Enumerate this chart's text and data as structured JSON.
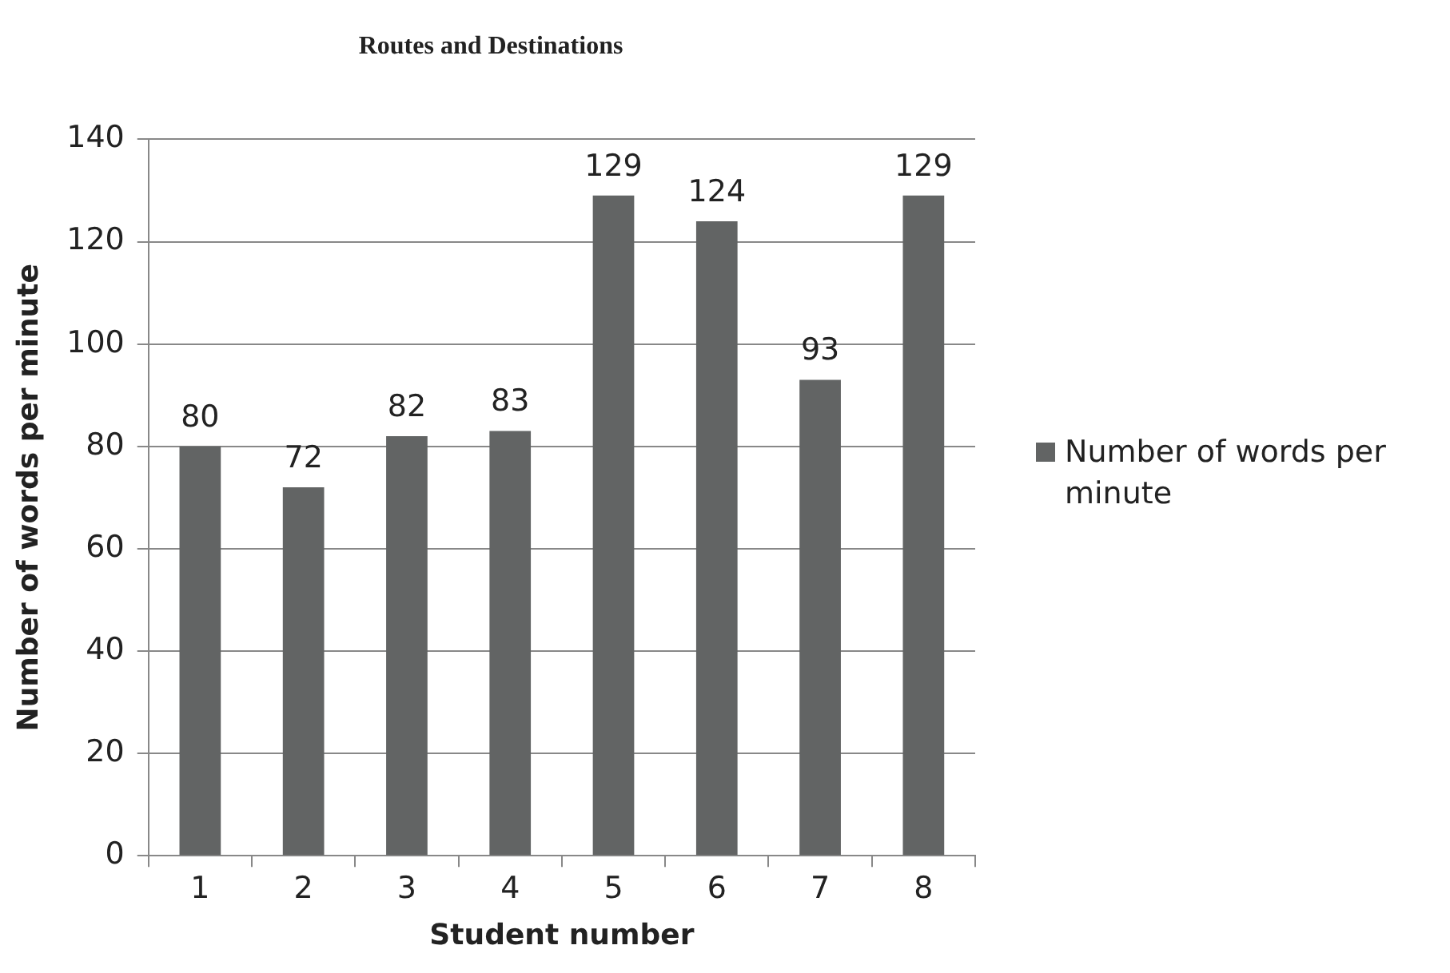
{
  "chart_data": {
    "type": "bar",
    "title": "Routes and Destinations",
    "xlabel": "Student number",
    "ylabel": "Number of words per minute",
    "categories": [
      "1",
      "2",
      "3",
      "4",
      "5",
      "6",
      "7",
      "8"
    ],
    "series": [
      {
        "name": "Number of words per minute",
        "color": "#626464",
        "values": [
          80,
          72,
          82,
          83,
          129,
          124,
          93,
          129
        ]
      }
    ],
    "ylim": [
      0,
      140
    ],
    "yticks": [
      0,
      20,
      40,
      60,
      80,
      100,
      120,
      140
    ],
    "grid": "y",
    "legend": "right",
    "data_labels": true
  }
}
